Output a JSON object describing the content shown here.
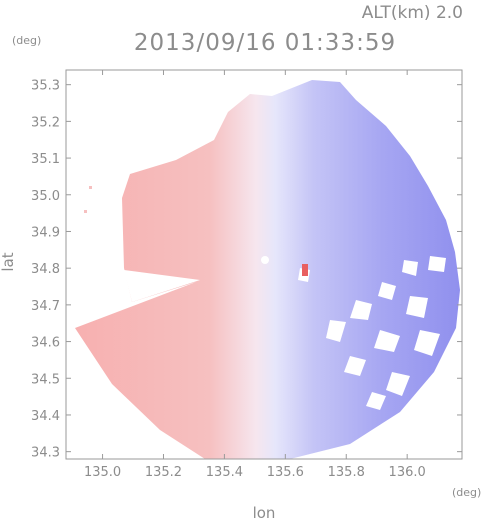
{
  "header": {
    "altitude_label": "ALT(km) 2.0",
    "timestamp": "2013/09/16 01:33:59"
  },
  "chart_data": {
    "type": "heatmap",
    "title": "2013/09/16 01:33:59",
    "subtitle": "ALT(km) 2.0",
    "xlabel": "lon",
    "ylabel": "lat",
    "x_unit": "(deg)",
    "y_unit": "(deg)",
    "xlim": [
      134.88,
      136.18
    ],
    "ylim": [
      34.28,
      35.34
    ],
    "x_ticks": [
      "135.0",
      "135.2",
      "135.4",
      "135.6",
      "135.8",
      "136.0"
    ],
    "y_ticks": [
      "34.3",
      "34.4",
      "34.5",
      "34.6",
      "34.7",
      "34.8",
      "34.9",
      "35.0",
      "35.1",
      "35.2",
      "35.3"
    ],
    "radar_center": [
      135.525,
      34.805
    ],
    "grid": false,
    "colors": {
      "toward": "#f4a9a9",
      "away": "#8f8ff0",
      "neutral": "#f2f2ff",
      "axis": "#9a9a9a",
      "text": "#8c8c8c"
    }
  }
}
